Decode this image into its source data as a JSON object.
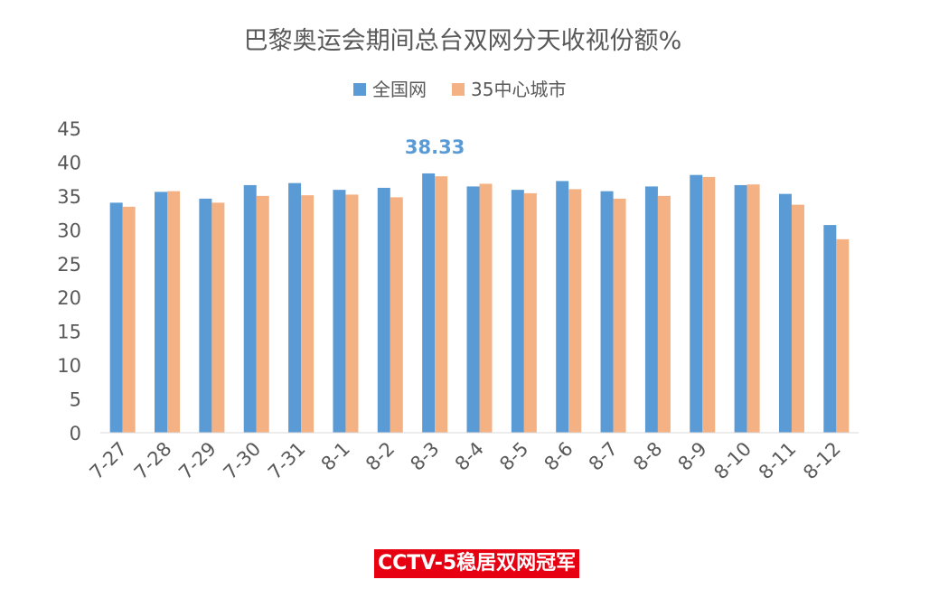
{
  "chart_data": {
    "type": "bar",
    "title": "巴黎奥运会期间总台双网分天收视份额%",
    "categories": [
      "7-27",
      "7-28",
      "7-29",
      "7-30",
      "7-31",
      "8-1",
      "8-2",
      "8-3",
      "8-4",
      "8-5",
      "8-6",
      "8-7",
      "8-8",
      "8-9",
      "8-10",
      "8-11",
      "8-12"
    ],
    "series": [
      {
        "name": "全国网",
        "color": "#5b9bd5",
        "values": [
          34.0,
          35.6,
          34.6,
          36.6,
          36.9,
          35.9,
          36.2,
          38.33,
          36.4,
          35.9,
          37.2,
          35.7,
          36.4,
          38.1,
          36.6,
          35.3,
          30.7
        ]
      },
      {
        "name": "35中心城市",
        "color": "#f4b183",
        "values": [
          33.4,
          35.7,
          34.0,
          35.0,
          35.1,
          35.2,
          34.8,
          37.9,
          36.8,
          35.4,
          36.0,
          34.6,
          35.0,
          37.8,
          36.7,
          33.7,
          28.6
        ]
      }
    ],
    "yticks": [
      "45",
      "40",
      "35",
      "30",
      "25",
      "20",
      "15",
      "10",
      "5",
      "0"
    ],
    "ylim": [
      0,
      45
    ],
    "grid": false,
    "legend_position": "top-center",
    "annotations": [
      {
        "text": "38.33",
        "category": "8-3",
        "color": "#5b9bd5"
      }
    ],
    "xlabel": "",
    "ylabel": ""
  },
  "caption": "CCTV-5稳居双网冠军",
  "colors": {
    "axis": "#d9d9d9",
    "text": "#595959",
    "caption_bg": "#e60012",
    "caption_text": "#ffffff"
  }
}
